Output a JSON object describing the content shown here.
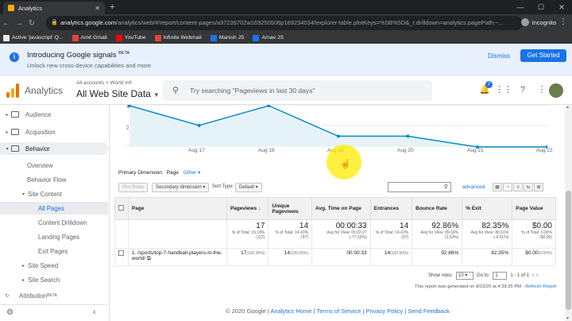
{
  "browser": {
    "tab_title": "Analytics",
    "url_host": "analytics.google.com",
    "url_path": "/analytics/web/#/report/content-pages/a97239702w169250506p169234034/explorer-table.plotKeys=%5B%5D&_r.drilldown=analytics.pagePath:~...",
    "incognito_label": "Incognito",
    "bookmarks": [
      {
        "label": "Active 'javascript' Q...",
        "color": "#e8eaed"
      },
      {
        "label": "Amit Gmail",
        "color": "#ea4335"
      },
      {
        "label": "YouTube",
        "color": "#ff0000"
      },
      {
        "label": "Infinite Webmail",
        "color": "#ea4335"
      },
      {
        "label": "Manish JS",
        "color": "#1a73e8"
      },
      {
        "label": "Arnav JS",
        "color": "#1a73e8"
      }
    ]
  },
  "banner": {
    "title": "Introducing Google signals",
    "badge": "BETA",
    "subtitle": "Unlock new cross-device capabilities and more.",
    "dismiss": "Dismiss",
    "cta": "Get Started"
  },
  "header": {
    "product": "Analytics",
    "account_path": "All accounts > World Infi",
    "view_name": "All Web Site Data",
    "search_placeholder": "Try searching \"Pageviews in last 30 days\"",
    "notification_count": "2"
  },
  "sidebar": {
    "items": [
      {
        "label": "Audience",
        "level": 0
      },
      {
        "label": "Acquisition",
        "level": 0
      },
      {
        "label": "Behavior",
        "level": 0
      },
      {
        "label": "Overview",
        "level": 1
      },
      {
        "label": "Behavior Flow",
        "level": 1
      },
      {
        "label": "Site Content",
        "level": 1
      },
      {
        "label": "All Pages",
        "level": 2
      },
      {
        "label": "Content Drilldown",
        "level": 2
      },
      {
        "label": "Landing Pages",
        "level": 2
      },
      {
        "label": "Exit Pages",
        "level": 2
      },
      {
        "label": "Site Speed",
        "level": 1
      },
      {
        "label": "Site Search",
        "level": 1
      },
      {
        "label": "Attribution",
        "level": 0,
        "badge": "BETA"
      }
    ]
  },
  "chart": {
    "y_ticks": [
      "4",
      "2"
    ],
    "x_ticks": [
      "Aug 17",
      "Aug 18",
      "Aug 19",
      "Aug 20",
      "Aug 21",
      "Aug 22"
    ],
    "line_color": "#058dc7",
    "fill_color": "#e5f3f9"
  },
  "chart_data": {
    "type": "area",
    "x": [
      "Aug 16",
      "Aug 17",
      "Aug 18",
      "Aug 19",
      "Aug 20",
      "Aug 21",
      "Aug 22"
    ],
    "values": [
      4.6,
      2.4,
      4.6,
      1.2,
      1.2,
      0.0,
      0.0
    ],
    "series": [
      {
        "name": "Pageviews",
        "values": [
          4.6,
          2.4,
          4.6,
          1.2,
          1.2,
          0.0,
          0.0
        ]
      }
    ]
  },
  "report": {
    "primary_dimension_label": "Primary Dimension:",
    "primary_dimension_value": "Page",
    "other_link": "Other",
    "plot_rows": "Plot Rows",
    "secondary_dimension": "Secondary dimension",
    "sort_type_label": "Sort Type:",
    "sort_type_value": "Default",
    "advanced": "advanced",
    "columns": [
      "Page",
      "Pageviews",
      "Unique Pageviews",
      "Avg. Time on Page",
      "Entrances",
      "Bounce Rate",
      "% Exit",
      "Page Value"
    ],
    "totals": {
      "pageviews": "17",
      "pageviews_sub": "% of Total: 15.18% (112)",
      "unique": "14",
      "unique_sub": "% of Total: 14.43% (97)",
      "avgtime": "00:00:33",
      "avgtime_sub": "Avg for View: 00:02:27 (-77.52%)",
      "entrances": "14",
      "entrances_sub": "% of Total: 14.43% (97)",
      "bounce": "92.86%",
      "bounce_sub": "Avg for View: 89.69% (3.53%)",
      "exit": "82.35%",
      "exit_sub": "Avg for View: 86.61% (-4.91%)",
      "value": "$0.00",
      "value_sub": "% of Total: 0.00% ($0.00)"
    },
    "rows": [
      {
        "index": "1.",
        "page": "/sports/top-7-handball-players-in-the-world/",
        "pageviews": "17",
        "pageviews_pct": "(100.00%)",
        "unique": "14",
        "unique_pct": "(100.00%)",
        "avgtime": "00:00:33",
        "entrances": "14",
        "entrances_pct": "(100.00%)",
        "bounce": "92.86%",
        "exit": "82.35%",
        "value": "$0.00",
        "value_pct": "(0.00%)"
      }
    ],
    "show_rows_label": "Show rows:",
    "show_rows_value": "10",
    "goto_label": "Go to:",
    "goto_value": "1",
    "range": "1 - 1 of 1",
    "generated": "This report was generated on 8/23/20 at 4:39:35 PM -",
    "refresh": "Refresh Report"
  },
  "footer": {
    "copyright": "© 2020 Google",
    "links": [
      "Analytics Home",
      "Terms of Service",
      "Privacy Policy",
      "Send Feedback"
    ]
  }
}
